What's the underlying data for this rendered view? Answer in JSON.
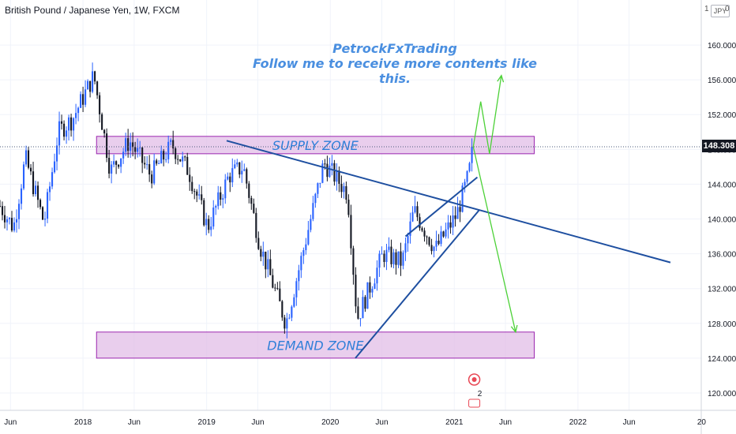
{
  "symbol_title": "British Pound / Japanese Yen, 1W, FXCM",
  "currency_badge": "JPY",
  "currency_fragment_left": "1",
  "currency_fragment_right": "0",
  "current_price_label": "148.308",
  "watermark": {
    "line1": "PetrockFxTrading",
    "line2": "Follow me to receive more contents like this."
  },
  "colors": {
    "up_candle": "#2962ff",
    "down_candle": "#131722",
    "zone_fill": "#e1bee7",
    "zone_border": "#9c27b0",
    "trendline": "#1e4fa0",
    "projection": "#4cd137",
    "zone_text": "#2f7fd8",
    "price_line": "#4a5a7a",
    "marker": "#e84855"
  },
  "chart_data": {
    "type": "candlestick",
    "title": "British Pound / Japanese Yen, 1W, FXCM",
    "x_range": [
      "2017-05-01",
      "2022-12-31"
    ],
    "ylim": [
      118,
      163
    ],
    "y_ticks": [
      120,
      124,
      128,
      132,
      136,
      140,
      144,
      148,
      152,
      156,
      160
    ],
    "y_tick_labels": [
      "120.000",
      "124.000",
      "128.000",
      "132.000",
      "136.000",
      "140.000",
      "144.000",
      "148.000",
      "152.000",
      "156.000",
      "160.000"
    ],
    "x_ticks": [
      {
        "date": "2017-06-01",
        "label": "Jun"
      },
      {
        "date": "2018-01-01",
        "label": "2018"
      },
      {
        "date": "2018-06-01",
        "label": "Jun"
      },
      {
        "date": "2019-01-01",
        "label": "2019"
      },
      {
        "date": "2019-06-01",
        "label": "Jun"
      },
      {
        "date": "2020-01-01",
        "label": "2020"
      },
      {
        "date": "2020-06-01",
        "label": "Jun"
      },
      {
        "date": "2021-01-01",
        "label": "2021"
      },
      {
        "date": "2021-06-01",
        "label": "Jun"
      },
      {
        "date": "2022-01-01",
        "label": "2022"
      },
      {
        "date": "2022-06-01",
        "label": "Jun"
      },
      {
        "date": "2023-01-01",
        "label": "20"
      }
    ],
    "price_anchors": [
      [
        "2017-05-01",
        141.5
      ],
      [
        "2017-06-10",
        139.0
      ],
      [
        "2017-07-15",
        147.0
      ],
      [
        "2017-09-08",
        139.5
      ],
      [
        "2017-10-20",
        150.0
      ],
      [
        "2017-12-01",
        151.5
      ],
      [
        "2018-02-02",
        156.5
      ],
      [
        "2018-03-23",
        145.5
      ],
      [
        "2018-05-18",
        149.0
      ],
      [
        "2018-07-20",
        145.0
      ],
      [
        "2018-09-21",
        148.5
      ],
      [
        "2018-11-09",
        145.5
      ],
      [
        "2019-01-04",
        139.0
      ],
      [
        "2019-03-08",
        145.0
      ],
      [
        "2019-04-19",
        146.0
      ],
      [
        "2019-06-07",
        137.0
      ],
      [
        "2019-08-23",
        128.0
      ],
      [
        "2019-10-11",
        136.0
      ],
      [
        "2019-12-13",
        146.5
      ],
      [
        "2020-02-21",
        143.0
      ],
      [
        "2020-03-20",
        128.5
      ],
      [
        "2020-06-05",
        136.0
      ],
      [
        "2020-07-31",
        135.0
      ],
      [
        "2020-09-04",
        141.0
      ],
      [
        "2020-11-06",
        136.5
      ],
      [
        "2021-01-08",
        140.5
      ],
      [
        "2021-02-12",
        145.0
      ],
      [
        "2021-02-26",
        148.3
      ]
    ],
    "supply_zone": {
      "label": "SUPPLY ZONE",
      "from": "2018-02-10",
      "to": "2021-08-25",
      "low": 147.5,
      "high": 149.5
    },
    "demand_zone": {
      "label": "DEMAND ZONE",
      "from": "2018-02-10",
      "to": "2021-08-25",
      "low": 124.0,
      "high": 127.0
    },
    "trendlines": [
      {
        "name": "descending resistance",
        "from": [
          "2019-03-01",
          149.0
        ],
        "to": [
          "2022-10-01",
          135.0
        ]
      },
      {
        "name": "ascending support",
        "from": [
          "2020-03-15",
          124.0
        ],
        "to": [
          "2021-03-15",
          141.0
        ]
      },
      {
        "name": "ascending channel top",
        "from": [
          "2020-08-10",
          138.0
        ],
        "to": [
          "2021-03-10",
          144.8
        ]
      }
    ],
    "projections": [
      {
        "name": "bullish path",
        "points": [
          [
            "2021-02-26",
            148.3
          ],
          [
            "2021-03-20",
            153.5
          ],
          [
            "2021-04-15",
            147.5
          ],
          [
            "2021-05-20",
            156.5
          ]
        ]
      },
      {
        "name": "bearish path",
        "points": [
          [
            "2021-02-26",
            148.3
          ],
          [
            "2021-07-01",
            127.0
          ]
        ]
      }
    ],
    "current_price": 148.308,
    "marker_count": "2"
  }
}
